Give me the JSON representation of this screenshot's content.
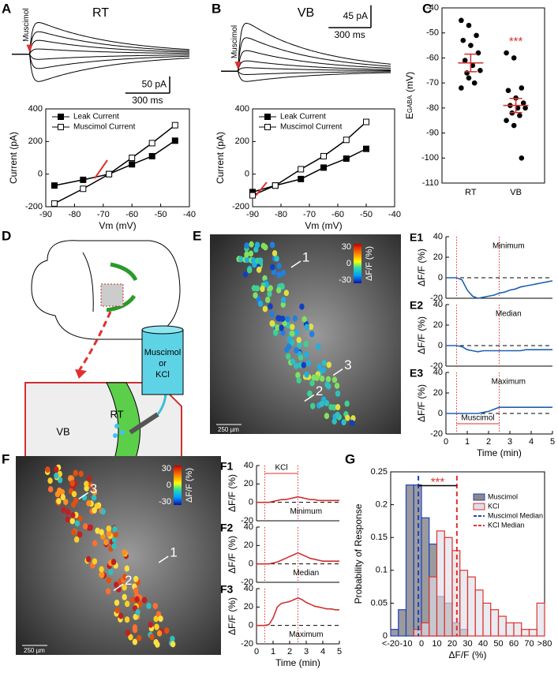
{
  "figure": {
    "panels": [
      "A",
      "B",
      "C",
      "D",
      "F",
      "G",
      "E"
    ]
  },
  "diagram": {
    "drug": [
      "Muscimol",
      "or",
      "KCl"
    ],
    "rt": "RT",
    "vb": "VB"
  },
  "images": [
    {
      "cbar_ticks": [
        30,
        0,
        -30
      ],
      "cbar_label": "ΔF/F (%)",
      "scale": "250 µm",
      "cells": [
        "1",
        "2",
        "3"
      ]
    },
    {
      "cbar_ticks": [
        30,
        0,
        -30
      ],
      "cbar_label": "ΔF/F (%)",
      "scale": "250 µm",
      "cells": [
        "1",
        "2",
        "3"
      ]
    }
  ],
  "chart_data": [
    {
      "type": "traces",
      "title": "RT",
      "stim_label": "Muscimol",
      "xlim": [
        0,
        1200
      ],
      "ylim": [
        -140,
        150
      ],
      "amplitudes": [
        110,
        78,
        48,
        18,
        -18,
        -50,
        -95
      ],
      "scalebar": {
        "y": 50,
        "y_label": "50 pA",
        "x": 300,
        "x_label": "300 ms"
      }
    },
    {
      "type": "line",
      "xlabel": "Vm (mV)",
      "ylabel": "Current (pA)",
      "xlim": [
        -90,
        -40
      ],
      "ylim": [
        -200,
        400
      ],
      "xticks": [
        -90,
        -80,
        -70,
        -60,
        -50,
        -40
      ],
      "yticks": [
        -200,
        0,
        200,
        400
      ],
      "legend": "upper left",
      "x": [
        -87,
        -77,
        -68,
        -60,
        -53,
        -45
      ],
      "series": [
        {
          "name": "Leak Current",
          "color": "#000000",
          "marker": "filled",
          "values": [
            -70,
            -35,
            0,
            60,
            110,
            205
          ]
        },
        {
          "name": "Muscimol Current",
          "color": "#000000",
          "marker": "open",
          "values": [
            -180,
            -90,
            0,
            100,
            190,
            300
          ]
        }
      ]
    },
    {
      "type": "traces",
      "title": "VB",
      "stim_label": "Muscimol",
      "xlim": [
        0,
        1200
      ],
      "ylim": [
        -60,
        135
      ],
      "amplitudes": [
        112,
        78,
        48,
        24,
        8,
        -8,
        -24
      ],
      "scalebar": {
        "y": 45,
        "y_label": "45 pA",
        "x": 300,
        "x_label": "300 ms"
      }
    },
    {
      "type": "line",
      "xlabel": "Vm (mV)",
      "ylabel": "Current (pA)",
      "xlim": [
        -90,
        -40
      ],
      "ylim": [
        -200,
        400
      ],
      "xticks": [
        -90,
        -80,
        -70,
        -60,
        -50,
        -40
      ],
      "yticks": [
        -200,
        0,
        200,
        400
      ],
      "legend": "upper left",
      "x": [
        -90,
        -82,
        -73,
        -65,
        -57,
        -50
      ],
      "series": [
        {
          "name": "Leak Current",
          "color": "#000000",
          "marker": "filled",
          "values": [
            -110,
            -70,
            -30,
            40,
            95,
            155
          ]
        },
        {
          "name": "Muscimol Current",
          "color": "#000000",
          "marker": "open",
          "values": [
            -130,
            -70,
            30,
            110,
            210,
            320
          ]
        }
      ]
    },
    {
      "type": "scatter",
      "ylabel": "E",
      "ylabel_sub": "GABA",
      "ylabel_unit": "(mV)",
      "ylim": [
        -110,
        -40
      ],
      "yticks": [
        -110,
        -100,
        -90,
        -80,
        -70,
        -60,
        -50,
        -40
      ],
      "annotation": "***",
      "groups": [
        {
          "name": "RT",
          "color": "#000000",
          "bar_color": "#d03030",
          "values": [
            -45,
            -47,
            -51,
            -53,
            -55,
            -58,
            -61,
            -63,
            -65,
            -66,
            -70,
            -72,
            -68
          ],
          "mean": -62,
          "sem": 3.5
        },
        {
          "name": "VB",
          "color": "#000000",
          "bar_color": "#d03030",
          "values": [
            -58,
            -60,
            -72,
            -73,
            -76,
            -78,
            -79,
            -80,
            -80,
            -82,
            -83,
            -85,
            -87,
            -100
          ],
          "mean": -79,
          "sem": 2.8
        }
      ]
    },
    {
      "type": "timecourse",
      "panel": "E1",
      "label": "Minimum",
      "ylabel": "ΔF/F (%)",
      "color": "#2060b0",
      "xlim": [
        0,
        5
      ],
      "ylim": [
        -20,
        40
      ],
      "yticks": [
        -20,
        0,
        20,
        40
      ],
      "stim": [
        0.5,
        2.5
      ],
      "x": [
        0,
        0.25,
        0.5,
        0.75,
        1,
        1.25,
        1.5,
        1.75,
        2,
        2.25,
        2.5,
        2.75,
        3,
        3.25,
        3.5,
        3.75,
        4,
        4.25,
        4.5,
        4.75,
        5
      ],
      "values": [
        0,
        0,
        0,
        -2,
        -12,
        -18,
        -20,
        -19,
        -18,
        -17,
        -15,
        -14,
        -12,
        -11,
        -9,
        -8,
        -7,
        -6,
        -5,
        -4,
        -3
      ]
    },
    {
      "type": "timecourse",
      "panel": "E2",
      "label": "Median",
      "ylabel": "ΔF/F (%)",
      "color": "#2060b0",
      "xlim": [
        0,
        5
      ],
      "ylim": [
        -20,
        40
      ],
      "yticks": [
        -20,
        0,
        20,
        40
      ],
      "stim": [
        0.5,
        2.5
      ],
      "x": [
        0,
        0.25,
        0.5,
        0.75,
        1,
        1.25,
        1.5,
        1.75,
        2,
        2.25,
        2.5,
        2.75,
        3,
        3.25,
        3.5,
        3.75,
        4,
        4.25,
        4.5,
        4.75,
        5
      ],
      "values": [
        0,
        0,
        0,
        -1,
        -4,
        -5,
        -6,
        -5,
        -5,
        -5,
        -5,
        -5,
        -5,
        -5,
        -5,
        -4,
        -4,
        -4,
        -4,
        -4,
        -4
      ]
    },
    {
      "type": "timecourse",
      "panel": "E3",
      "label": "Maximum",
      "ylabel": "ΔF/F (%)",
      "xlabel": "Time (min)",
      "stim_label": "Muscimol",
      "color": "#2060b0",
      "xlim": [
        0,
        5
      ],
      "ylim": [
        -20,
        40
      ],
      "yticks": [
        -20,
        0,
        20,
        40
      ],
      "xticks": [
        0,
        1,
        2,
        3,
        4,
        5
      ],
      "stim": [
        0.5,
        2.5
      ],
      "x": [
        0,
        0.25,
        0.5,
        0.75,
        1,
        1.25,
        1.5,
        1.75,
        2,
        2.25,
        2.5,
        2.75,
        3,
        3.25,
        3.5,
        3.75,
        4,
        4.25,
        4.5,
        4.75,
        5
      ],
      "values": [
        0,
        0,
        0,
        0,
        0,
        0,
        0,
        1,
        2,
        4,
        6,
        6,
        6,
        6,
        6,
        6,
        6,
        6,
        6,
        6,
        6
      ]
    },
    {
      "type": "timecourse",
      "panel": "F1",
      "label": "Minimum",
      "ylabel": "ΔF/F (%)",
      "stim_label": "KCl",
      "color": "#d03030",
      "xlim": [
        0,
        5
      ],
      "ylim": [
        -20,
        40
      ],
      "yticks": [
        -20,
        0,
        20,
        40
      ],
      "stim": [
        0.5,
        2.5
      ],
      "x": [
        0,
        0.25,
        0.5,
        0.75,
        1,
        1.25,
        1.5,
        1.75,
        2,
        2.25,
        2.5,
        2.75,
        3,
        3.25,
        3.5,
        3.75,
        4,
        4.25,
        4.5,
        4.75,
        5
      ],
      "values": [
        0,
        0,
        0,
        0,
        1,
        2,
        3,
        3,
        4,
        5,
        6,
        5,
        4,
        3,
        3,
        2,
        2,
        2,
        2,
        2,
        2
      ]
    },
    {
      "type": "timecourse",
      "panel": "F2",
      "label": "Median",
      "ylabel": "ΔF/F (%)",
      "color": "#d03030",
      "xlim": [
        0,
        5
      ],
      "ylim": [
        -20,
        40
      ],
      "yticks": [
        -20,
        0,
        20,
        40
      ],
      "stim": [
        0.5,
        2.5
      ],
      "x": [
        0,
        0.25,
        0.5,
        0.75,
        1,
        1.25,
        1.5,
        1.75,
        2,
        2.25,
        2.5,
        2.75,
        3,
        3.25,
        3.5,
        3.75,
        4,
        4.25,
        4.5,
        4.75,
        5
      ],
      "values": [
        0,
        0,
        0,
        0,
        1,
        2,
        4,
        6,
        8,
        10,
        12,
        10,
        8,
        6,
        5,
        4,
        3,
        3,
        3,
        3,
        3
      ]
    },
    {
      "type": "timecourse",
      "panel": "F3",
      "label": "Maximum",
      "ylabel": "ΔF/F (%)",
      "xlabel": "Time (min)",
      "color": "#d03030",
      "xlim": [
        0,
        5
      ],
      "ylim": [
        -20,
        40
      ],
      "yticks": [
        -20,
        0,
        20,
        40
      ],
      "xticks": [
        0,
        1,
        2,
        3,
        4,
        5
      ],
      "stim": [
        0.5,
        2.5
      ],
      "x": [
        0,
        0.25,
        0.5,
        0.75,
        1,
        1.25,
        1.5,
        1.75,
        2,
        2.25,
        2.5,
        2.75,
        3,
        3.25,
        3.5,
        3.75,
        4,
        4.25,
        4.5,
        4.75,
        5
      ],
      "values": [
        0,
        0,
        0,
        1,
        8,
        20,
        24,
        25,
        26,
        28,
        30,
        28,
        25,
        23,
        21,
        20,
        19,
        18,
        18,
        17,
        17
      ]
    },
    {
      "type": "histogram",
      "ylabel": "Probability of Response",
      "xlabel": "ΔF/F (%)",
      "annotation": "***",
      "legend": "upper right",
      "xlim": [
        -20,
        80
      ],
      "ylim": [
        0,
        0.25
      ],
      "yticks": [
        0,
        0.05,
        0.1,
        0.15,
        0.2,
        0.25
      ],
      "xticks": [
        {
          "value": -20,
          "label": "<-20"
        },
        -10,
        0,
        10,
        20,
        30,
        40,
        50,
        60,
        70,
        {
          "value": 80,
          "label": ">80"
        }
      ],
      "bins": [
        -20,
        -15,
        -10,
        -5,
        0,
        5,
        10,
        15,
        20,
        25,
        30,
        35,
        40,
        45,
        50,
        55,
        60,
        65,
        70,
        75,
        80
      ],
      "series": [
        {
          "name": "Muscimol",
          "color": "#2040c0",
          "fill": "#8a8a8a",
          "values": [
            0.01,
            0.04,
            0.23,
            0.23,
            0.18,
            0.14,
            0.06,
            0.05,
            0.02,
            0.01,
            0,
            0,
            0,
            0,
            0,
            0,
            0,
            0,
            0,
            0
          ]
        },
        {
          "name": "KCl",
          "color": "#e03030",
          "fill": "#dde0e8",
          "values": [
            0,
            0,
            0,
            0.01,
            0.02,
            0.09,
            0.16,
            0.15,
            0.13,
            0.1,
            0.09,
            0.07,
            0.05,
            0.04,
            0.03,
            0.02,
            0.02,
            0.01,
            0.01,
            0.05
          ]
        }
      ],
      "medians": [
        {
          "name": "Muscimol Median",
          "color": "#2040c0",
          "value": -2
        },
        {
          "name": "KCl Median",
          "color": "#e03030",
          "value": 23
        }
      ]
    }
  ]
}
